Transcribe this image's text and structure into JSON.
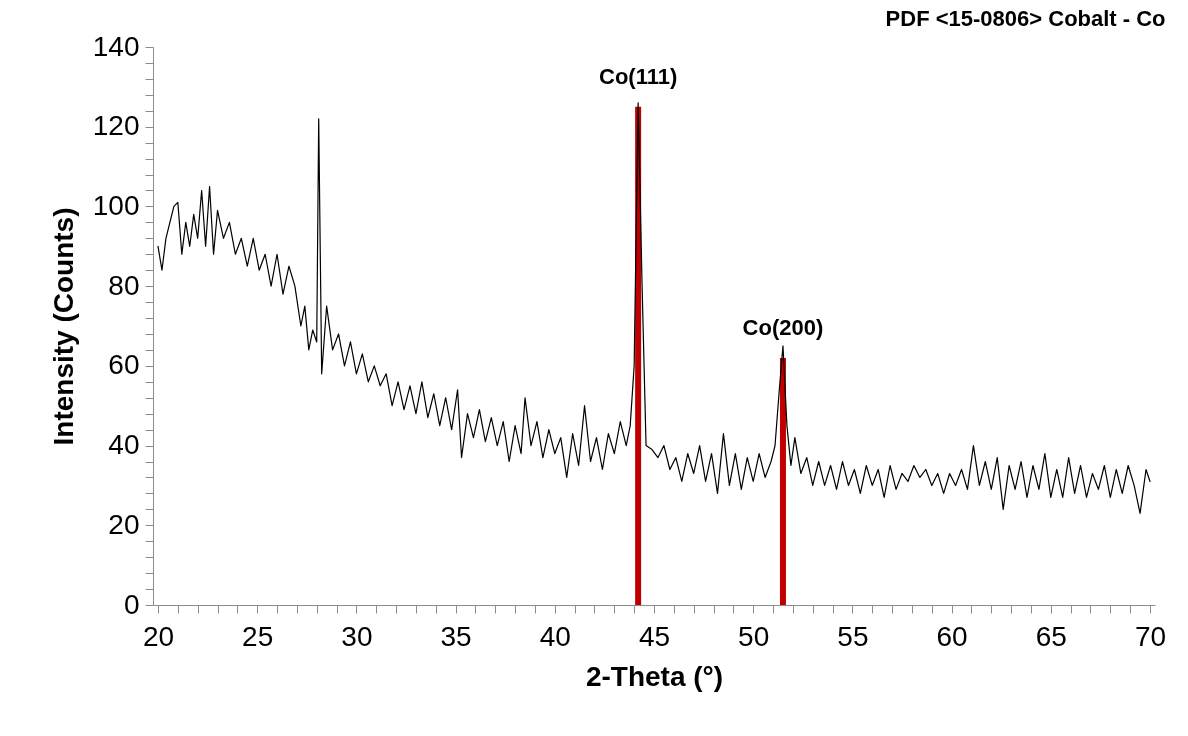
{
  "chart_data": {
    "type": "line",
    "title": "PDF <15-0806> Cobalt - Co",
    "xlabel": "2-Theta (°)",
    "ylabel": "Intensity (Counts)",
    "xlim": [
      20,
      70
    ],
    "ylim": [
      0,
      140
    ],
    "xticks": [
      20,
      {
        "value": 21,
        "label": null
      },
      {
        "value": 22,
        "label": null
      },
      {
        "value": 23,
        "label": null
      },
      {
        "value": 24,
        "label": null
      },
      25,
      {
        "value": 26,
        "label": null
      },
      {
        "value": 27,
        "label": null
      },
      {
        "value": 28,
        "label": null
      },
      {
        "value": 29,
        "label": null
      },
      30,
      {
        "value": 31,
        "label": null
      },
      {
        "value": 32,
        "label": null
      },
      {
        "value": 33,
        "label": null
      },
      {
        "value": 34,
        "label": null
      },
      35,
      {
        "value": 36,
        "label": null
      },
      {
        "value": 37,
        "label": null
      },
      {
        "value": 38,
        "label": null
      },
      {
        "value": 39,
        "label": null
      },
      40,
      {
        "value": 41,
        "label": null
      },
      {
        "value": 42,
        "label": null
      },
      {
        "value": 43,
        "label": null
      },
      {
        "value": 44,
        "label": null
      },
      45,
      {
        "value": 46,
        "label": null
      },
      {
        "value": 47,
        "label": null
      },
      {
        "value": 48,
        "label": null
      },
      {
        "value": 49,
        "label": null
      },
      50,
      {
        "value": 51,
        "label": null
      },
      {
        "value": 52,
        "label": null
      },
      {
        "value": 53,
        "label": null
      },
      {
        "value": 54,
        "label": null
      },
      55,
      {
        "value": 56,
        "label": null
      },
      {
        "value": 57,
        "label": null
      },
      {
        "value": 58,
        "label": null
      },
      {
        "value": 59,
        "label": null
      },
      60,
      {
        "value": 61,
        "label": null
      },
      {
        "value": 62,
        "label": null
      },
      {
        "value": 63,
        "label": null
      },
      {
        "value": 64,
        "label": null
      },
      65,
      {
        "value": 66,
        "label": null
      },
      {
        "value": 67,
        "label": null
      },
      {
        "value": 68,
        "label": null
      },
      {
        "value": 69,
        "label": null
      },
      70
    ],
    "yticks": [
      0,
      {
        "value": 4,
        "label": null
      },
      {
        "value": 8,
        "label": null
      },
      {
        "value": 12,
        "label": null
      },
      {
        "value": 16,
        "label": null
      },
      20,
      {
        "value": 24,
        "label": null
      },
      {
        "value": 28,
        "label": null
      },
      {
        "value": 32,
        "label": null
      },
      {
        "value": 36,
        "label": null
      },
      40,
      {
        "value": 44,
        "label": null
      },
      {
        "value": 48,
        "label": null
      },
      {
        "value": 52,
        "label": null
      },
      {
        "value": 56,
        "label": null
      },
      60,
      {
        "value": 64,
        "label": null
      },
      {
        "value": 68,
        "label": null
      },
      {
        "value": 72,
        "label": null
      },
      {
        "value": 76,
        "label": null
      },
      80,
      {
        "value": 84,
        "label": null
      },
      {
        "value": 88,
        "label": null
      },
      {
        "value": 92,
        "label": null
      },
      {
        "value": 96,
        "label": null
      },
      100,
      {
        "value": 104,
        "label": null
      },
      {
        "value": 108,
        "label": null
      },
      {
        "value": 112,
        "label": null
      },
      {
        "value": 116,
        "label": null
      },
      120,
      {
        "value": 124,
        "label": null
      },
      {
        "value": 128,
        "label": null
      },
      {
        "value": 132,
        "label": null
      },
      {
        "value": 136,
        "label": null
      },
      140
    ],
    "series": [
      {
        "color": "#000000",
        "x": [
          20.0,
          20.2,
          20.4,
          20.6,
          20.8,
          21.0,
          21.2,
          21.4,
          21.6,
          21.8,
          22.0,
          22.2,
          22.4,
          22.6,
          22.8,
          23.0,
          23.3,
          23.6,
          23.9,
          24.2,
          24.5,
          24.8,
          25.1,
          25.4,
          25.7,
          26.0,
          26.3,
          26.6,
          26.9,
          27.2,
          27.4,
          27.6,
          27.8,
          28.0,
          28.1,
          28.25,
          28.5,
          28.8,
          29.1,
          29.4,
          29.7,
          30.0,
          30.3,
          30.6,
          30.9,
          31.2,
          31.5,
          31.8,
          32.1,
          32.4,
          32.7,
          33.0,
          33.3,
          33.6,
          33.9,
          34.2,
          34.5,
          34.8,
          35.1,
          35.3,
          35.6,
          35.9,
          36.2,
          36.5,
          36.8,
          37.1,
          37.4,
          37.7,
          38.0,
          38.3,
          38.5,
          38.8,
          39.1,
          39.4,
          39.7,
          40.0,
          40.3,
          40.6,
          40.9,
          41.2,
          41.5,
          41.8,
          42.1,
          42.4,
          42.7,
          43.0,
          43.3,
          43.6,
          43.8,
          44.0,
          44.2,
          44.4,
          44.6,
          44.9,
          45.2,
          45.5,
          45.8,
          46.1,
          46.4,
          46.7,
          47.0,
          47.3,
          47.6,
          47.9,
          48.2,
          48.5,
          48.8,
          49.1,
          49.4,
          49.7,
          50.0,
          50.3,
          50.6,
          50.9,
          51.1,
          51.3,
          51.5,
          51.7,
          51.9,
          52.1,
          52.4,
          52.7,
          53.0,
          53.3,
          53.6,
          53.9,
          54.2,
          54.5,
          54.8,
          55.1,
          55.4,
          55.7,
          56.0,
          56.3,
          56.6,
          56.9,
          57.2,
          57.5,
          57.8,
          58.1,
          58.4,
          58.7,
          59.0,
          59.3,
          59.6,
          59.9,
          60.2,
          60.5,
          60.8,
          61.1,
          61.4,
          61.7,
          62.0,
          62.3,
          62.6,
          62.9,
          63.2,
          63.5,
          63.8,
          64.1,
          64.4,
          64.7,
          65.0,
          65.3,
          65.6,
          65.9,
          66.2,
          66.5,
          66.8,
          67.1,
          67.4,
          67.7,
          68.0,
          68.3,
          68.6,
          68.9,
          69.2,
          69.5,
          69.8,
          70.0
        ],
        "values": [
          90,
          84,
          92,
          96,
          100,
          101,
          88,
          96,
          90,
          98,
          92,
          104,
          90,
          105,
          88,
          99,
          92,
          96,
          88,
          92,
          85,
          92,
          84,
          88,
          80,
          88,
          78,
          85,
          80,
          70,
          75,
          64,
          69,
          66,
          122,
          58,
          75,
          64,
          68,
          60,
          66,
          58,
          63,
          56,
          60,
          55,
          58,
          50,
          56,
          49,
          55,
          48,
          56,
          47,
          53,
          45,
          52,
          44,
          54,
          37,
          48,
          42,
          49,
          41,
          47,
          40,
          46,
          36,
          45,
          38,
          52,
          40,
          46,
          37,
          44,
          38,
          42,
          32,
          43,
          35,
          50,
          36,
          42,
          34,
          43,
          38,
          46,
          40,
          45,
          60,
          126,
          80,
          40,
          39,
          37,
          40,
          34,
          37,
          31,
          38,
          33,
          40,
          31,
          38,
          28,
          43,
          30,
          38,
          29,
          37,
          31,
          38,
          32,
          36,
          40,
          53,
          65,
          45,
          35,
          42,
          33,
          37,
          30,
          36,
          30,
          35,
          29,
          36,
          30,
          34,
          28,
          35,
          30,
          34,
          27,
          35,
          29,
          33,
          31,
          35,
          32,
          34,
          30,
          33,
          28,
          33,
          30,
          34,
          29,
          40,
          30,
          36,
          29,
          37,
          24,
          35,
          29,
          36,
          27,
          35,
          29,
          38,
          27,
          34,
          27,
          37,
          28,
          35,
          27,
          33,
          29,
          35,
          27,
          34,
          28,
          35,
          30,
          23,
          34,
          31
        ]
      },
      {
        "type": "bar",
        "color": "#c00000",
        "x": [
          44.2,
          51.5
        ],
        "values": [
          125,
          62
        ]
      }
    ],
    "annotations": [
      {
        "text": "Co(111)",
        "x": 44.2,
        "y": 125
      },
      {
        "text": "Co(200)",
        "x": 51.5,
        "y": 62
      }
    ]
  }
}
